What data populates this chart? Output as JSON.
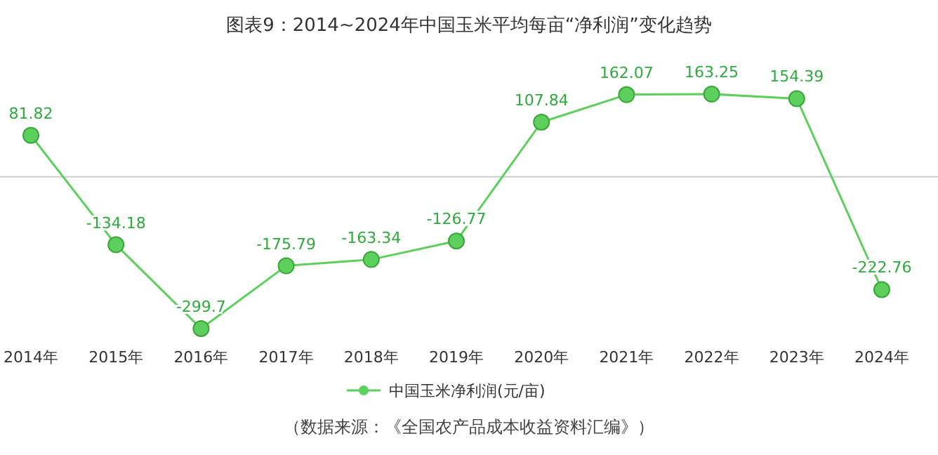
{
  "chart_data": {
    "type": "line",
    "title": "图表9：2014~2024年中国玉米平均每亩“净利润”变化趋势",
    "categories": [
      "2014年",
      "2015年",
      "2016年",
      "2017年",
      "2018年",
      "2019年",
      "2020年",
      "2021年",
      "2022年",
      "2023年",
      "2024年"
    ],
    "series": [
      {
        "name": "中国玉米净利润(元/亩)",
        "color": "#5ccf5c",
        "values": [
          81.82,
          -134.18,
          -299.7,
          -175.79,
          -163.34,
          -126.77,
          107.84,
          162.07,
          163.25,
          154.39,
          -222.76
        ]
      }
    ],
    "data_labels": true,
    "marker": "circle",
    "legend": "bottom",
    "ref_lines": [
      {
        "axis": "y",
        "value": 0,
        "color": "#cccccc"
      }
    ],
    "annotations": [
      "（数据来源：《全国农产品成本收益资料汇编》）"
    ]
  }
}
